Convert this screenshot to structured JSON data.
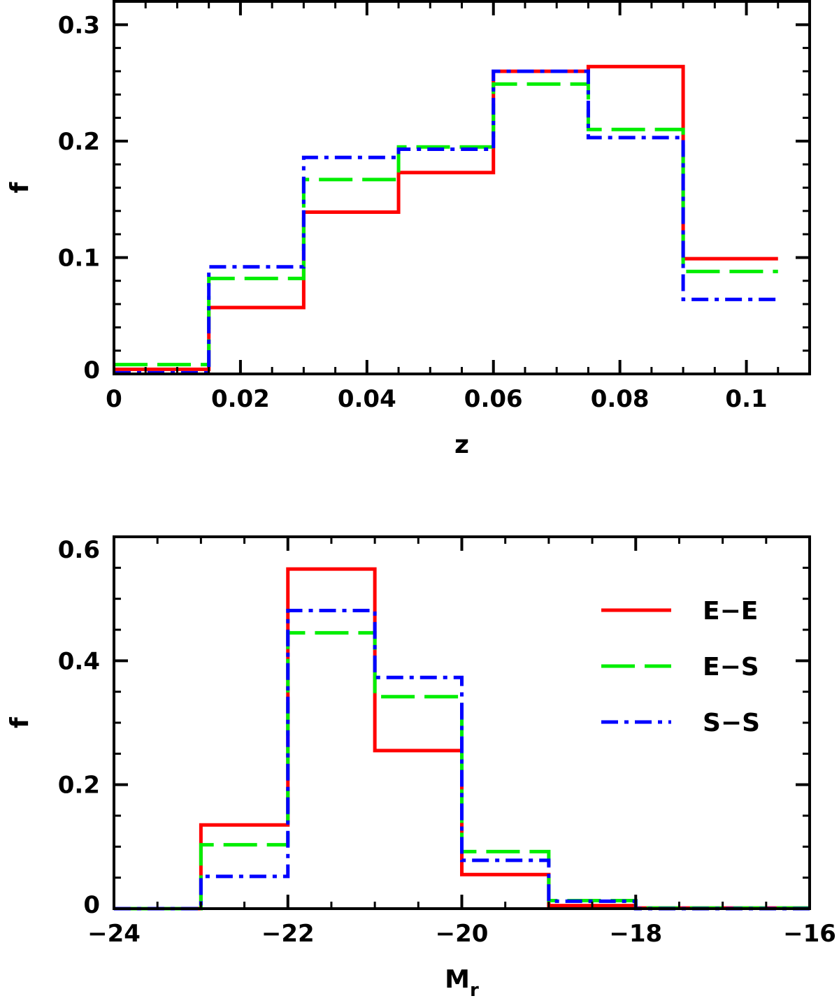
{
  "chart_data": [
    {
      "type": "line",
      "step": true,
      "title": "",
      "xlabel": "z",
      "ylabel": "f",
      "xlim": [
        0,
        0.11
      ],
      "ylim": [
        0,
        0.32
      ],
      "xticks": [
        {
          "value": 0,
          "label": "0"
        },
        {
          "value": 0.02,
          "label": "0.02"
        },
        {
          "value": 0.04,
          "label": "0.04"
        },
        {
          "value": 0.06,
          "label": "0.06"
        },
        {
          "value": 0.08,
          "label": "0.08"
        },
        {
          "value": 0.1,
          "label": "0.1"
        }
      ],
      "yticks": [
        {
          "value": 0,
          "label": "0"
        },
        {
          "value": 0.1,
          "label": "0.1"
        },
        {
          "value": 0.2,
          "label": "0.2"
        },
        {
          "value": 0.3,
          "label": "0.3"
        }
      ],
      "x_minor_step": 0.005,
      "y_minor_step": 0.02,
      "bin_edges": [
        0,
        0.015,
        0.03,
        0.045,
        0.06,
        0.075,
        0.09,
        0.105
      ],
      "series": [
        {
          "key": "ee",
          "values": [
            0.004,
            0.057,
            0.139,
            0.173,
            0.26,
            0.264,
            0.099
          ],
          "color": "#ff0000",
          "dash": "solid"
        },
        {
          "key": "es",
          "values": [
            0.008,
            0.082,
            0.167,
            0.195,
            0.249,
            0.21,
            0.088
          ],
          "color": "#00ee00",
          "dash": "long-dash"
        },
        {
          "key": "ss",
          "values": [
            0.001,
            0.092,
            0.186,
            0.193,
            0.26,
            0.203,
            0.064
          ],
          "color": "#0000ff",
          "dash": "dash-dot"
        }
      ],
      "grid": false
    },
    {
      "type": "line",
      "step": true,
      "title": "",
      "xlabel": "M",
      "xlabel_subscript": "r",
      "ylabel": "f",
      "xlim": [
        -24,
        -16
      ],
      "ylim": [
        0,
        0.6
      ],
      "xticks": [
        {
          "value": -24,
          "label": "−24"
        },
        {
          "value": -22,
          "label": "−22"
        },
        {
          "value": -20,
          "label": "−20"
        },
        {
          "value": -18,
          "label": "−18"
        },
        {
          "value": -16,
          "label": "−16"
        }
      ],
      "yticks": [
        {
          "value": 0,
          "label": "0"
        },
        {
          "value": 0.2,
          "label": "0.2"
        },
        {
          "value": 0.4,
          "label": "0.4"
        },
        {
          "value": 0.6,
          "label": "0.6"
        }
      ],
      "x_minor_step": 0.5,
      "y_minor_step": 0.05,
      "bin_edges": [
        -24,
        -23,
        -22,
        -21,
        -20,
        -19,
        -18,
        -17,
        -16
      ],
      "series": [
        {
          "key": "ee",
          "name": "E−E",
          "values": [
            0,
            0.135,
            0.548,
            0.255,
            0.055,
            0.005,
            0.001,
            0.001
          ],
          "color": "#ff0000",
          "dash": "solid"
        },
        {
          "key": "es",
          "name": "E−S",
          "values": [
            0,
            0.103,
            0.445,
            0.342,
            0.092,
            0.013,
            0.001,
            0.001
          ],
          "color": "#00ee00",
          "dash": "long-dash"
        },
        {
          "key": "ss",
          "name": "S−S",
          "values": [
            0,
            0.052,
            0.481,
            0.373,
            0.078,
            0.012,
            0,
            0
          ],
          "color": "#0000ff",
          "dash": "dash-dot"
        }
      ],
      "legend": {
        "placement": "top-right"
      },
      "grid": false
    }
  ]
}
